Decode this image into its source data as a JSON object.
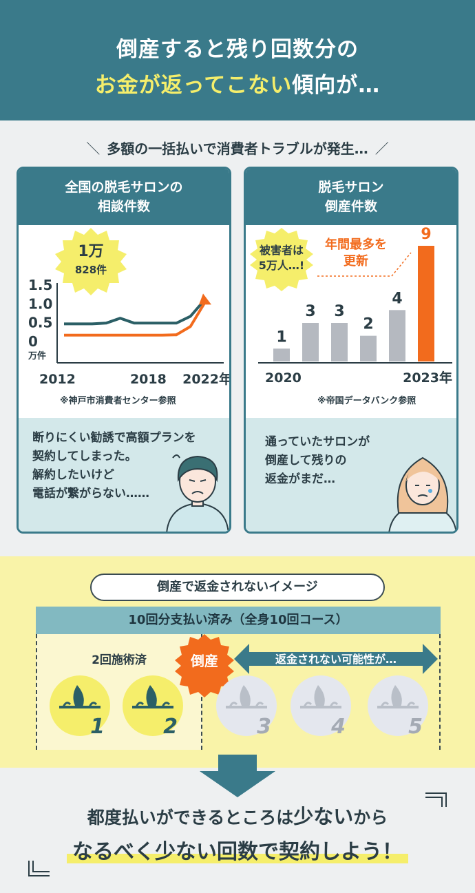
{
  "header": {
    "line1": "倒産すると残り回数分の",
    "line2_highlight": "お金が返ってこない",
    "line2_rest": "傾向が…"
  },
  "subhead": {
    "slash_left": "＼",
    "text": "多額の一括払いで消費者トラブルが発生…",
    "slash_right": "／"
  },
  "left_panel": {
    "title_line1": "全国の脱毛サロンの",
    "title_line2": "相談件数",
    "badge_line1": "1万",
    "badge_line2": "828件",
    "source": "※神戸市消費者センター参照",
    "quote_lines": [
      "断りにくい勧誘で高額プランを",
      "契約してしまった。",
      "解約したいけど",
      "電話が繋がらない……"
    ]
  },
  "right_panel": {
    "title_line1": "脱毛サロン",
    "title_line2": "倒産件数",
    "badge_line1": "被害者は",
    "badge_line2": "5万人…!",
    "record_line1": "年間最多を",
    "record_line2": "更新",
    "source": "※帝国データバンク参照",
    "quote_lines": [
      "通っていたサロンが",
      "倒産して残りの",
      "返金がまだ…"
    ]
  },
  "chart_data": [
    {
      "type": "line",
      "x": [
        2012,
        2013,
        2014,
        2015,
        2016,
        2017,
        2018,
        2019,
        2020,
        2021,
        2022
      ],
      "xticks": [
        "2012",
        "2018",
        "2022年"
      ],
      "yticks": [
        "1.5",
        "1.0",
        "0.5",
        "0"
      ],
      "yunit": "万件",
      "ylim": [
        0,
        1.5
      ],
      "series": [
        {
          "values": [
            0.45,
            0.45,
            0.45,
            0.47,
            0.6,
            0.47,
            0.47,
            0.47,
            0.47,
            0.65,
            1.08
          ],
          "color": "#2b5f66"
        },
        {
          "values": [
            0.15,
            0.15,
            0.15,
            0.15,
            0.15,
            0.15,
            0.15,
            0.15,
            0.16,
            0.38,
            1.0
          ],
          "color": "#f26b1d"
        }
      ]
    },
    {
      "type": "bar",
      "categories": [
        "2020",
        "",
        "",
        "",
        "",
        "2023年"
      ],
      "values": [
        1,
        3,
        3,
        2,
        4,
        9
      ],
      "colors": [
        "#b5b9c0",
        "#b5b9c0",
        "#b5b9c0",
        "#b5b9c0",
        "#b5b9c0",
        "#f26b1d"
      ],
      "ylim": [
        0,
        9
      ]
    }
  ],
  "yellow": {
    "pill": "倒産で返金されないイメージ",
    "bar": "10回分支払い済み（全身10回コース）",
    "done_label": "2回施術済",
    "bankrupt": "倒産",
    "not_refunded": "返金されない可能性が…",
    "sessions": [
      "1",
      "2",
      "3",
      "4",
      "5"
    ]
  },
  "bottom": {
    "line1_a": "都度払いができるところは",
    "line1_b": "少ない",
    "line1_c": "から",
    "line2": "なるべく少ない回数で契約しよう！"
  }
}
